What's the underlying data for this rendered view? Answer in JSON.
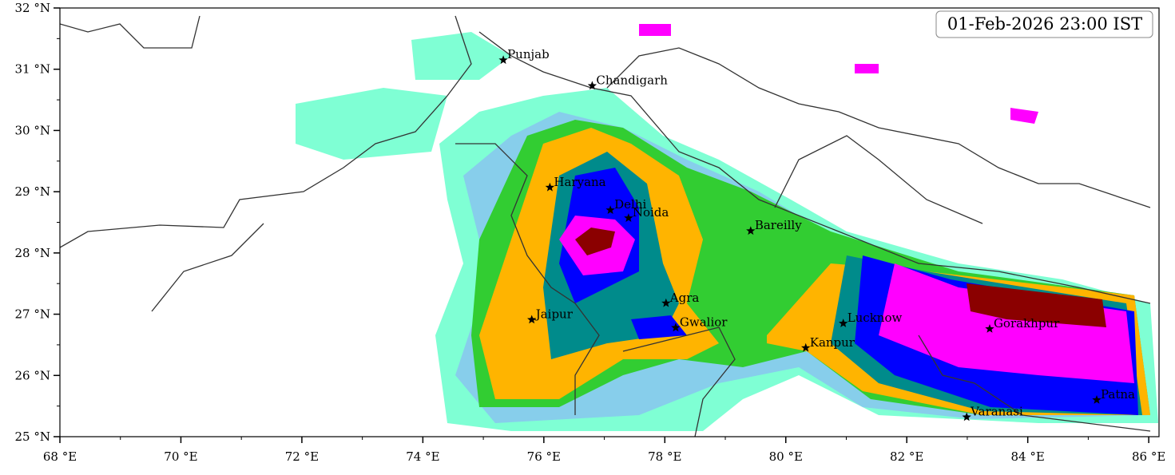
{
  "map": {
    "timestamp": "01-Feb-2026 23:00 IST",
    "xlim": [
      68,
      86.17
    ],
    "ylim": [
      25,
      32
    ],
    "xticks": [
      {
        "value": 68,
        "label": "68 °E"
      },
      {
        "value": 70,
        "label": "70 °E"
      },
      {
        "value": 72,
        "label": "72 °E"
      },
      {
        "value": 74,
        "label": "74 °E"
      },
      {
        "value": 76,
        "label": "76 °E"
      },
      {
        "value": 78,
        "label": "78 °E"
      },
      {
        "value": 80,
        "label": "80 °E"
      },
      {
        "value": 82,
        "label": "82 °E"
      },
      {
        "value": 84,
        "label": "84 °E"
      },
      {
        "value": 86,
        "label": "86 °E"
      }
    ],
    "yticks": [
      {
        "value": 25,
        "label": "25 °N"
      },
      {
        "value": 26,
        "label": "26 °N"
      },
      {
        "value": 27,
        "label": "27 °N"
      },
      {
        "value": 28,
        "label": "28 °N"
      },
      {
        "value": 29,
        "label": "29 °N"
      },
      {
        "value": 30,
        "label": "30 °N"
      },
      {
        "value": 31,
        "label": "31 °N"
      },
      {
        "value": 32,
        "label": "32 °N"
      }
    ],
    "cities": [
      {
        "name": "Punjab",
        "lon": 75.33,
        "lat": 31.15
      },
      {
        "name": "Chandigarh",
        "lon": 76.8,
        "lat": 30.73
      },
      {
        "name": "Haryana",
        "lon": 76.1,
        "lat": 29.07
      },
      {
        "name": "Delhi",
        "lon": 77.1,
        "lat": 28.7
      },
      {
        "name": "Noida",
        "lon": 77.4,
        "lat": 28.57
      },
      {
        "name": "Bareilly",
        "lon": 79.42,
        "lat": 28.36
      },
      {
        "name": "Agra",
        "lon": 78.02,
        "lat": 27.18
      },
      {
        "name": "Jaipur",
        "lon": 75.8,
        "lat": 26.91
      },
      {
        "name": "Gwalior",
        "lon": 78.18,
        "lat": 26.78
      },
      {
        "name": "Lucknow",
        "lon": 80.95,
        "lat": 26.85
      },
      {
        "name": "Gorakhpur",
        "lon": 83.37,
        "lat": 26.76
      },
      {
        "name": "Kanpur",
        "lon": 80.33,
        "lat": 26.45
      },
      {
        "name": "Varanasi",
        "lon": 82.99,
        "lat": 25.32
      },
      {
        "name": "Patna",
        "lon": 85.14,
        "lat": 25.6
      }
    ]
  }
}
